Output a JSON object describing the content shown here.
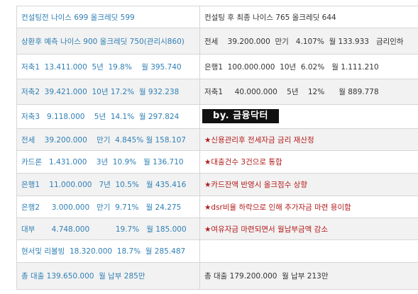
{
  "rows": [
    {
      "left": "컨설팅전 나이스 699 올크레딧 599",
      "right": "컨설팅 후 최종 나이스 765 올크레딧 644",
      "right_color": "#333333"
    },
    {
      "left": "상환후 예측 나이스 900 올크레딧 750(관리시860)",
      "right": "전세    39.200.000  만기   4.107%  월 133.933   금리인하",
      "right_color": "#333333"
    },
    {
      "left": "저축1  13.411.000  5년  19.8%    월 395.740",
      "right": "은행1  100.000.000  10년  6.02%   월 1.111.210",
      "right_color": "#333333"
    },
    {
      "left": "저축2  39.421.000  10년 17.2%  월 932.238",
      "right": "저축1     40.000.000    5년    12%      월 889.778",
      "right_color": "#333333"
    },
    {
      "left": "저축3   9.118.000    5년  14.1%  월 297.824",
      "right": "",
      "right_color": "#333333"
    },
    {
      "left": "전세    39.200.000    만기  4.845% 월 158.107",
      "right": "★신용관리후 전세자금 금리 재산정",
      "right_color": "#b31a1a"
    },
    {
      "left": "카드론   1.431.000    3년  10.9%   월 136.710",
      "right": "★대출건수 3건으로 통합",
      "right_color": "#b31a1a"
    },
    {
      "left": "은행1    11.000.000   7년  10.5%   월 435.416",
      "right": "★카드잔액 반영시 올크점수 상향",
      "right_color": "#b31a1a"
    },
    {
      "left": "은행2     3.000.000   만기  9.71%   월 24.275",
      "right": "★dsr비율 하락으로 인해 추가자금 마련 용이함",
      "right_color": "#b31a1a"
    },
    {
      "left": "대부       4.748.000           19.7%   월 185.000",
      "right": "★여유자금 마련되면서 월납부금액 감소",
      "right_color": "#b31a1a"
    },
    {
      "left": "현서및 리볼빙  18.320.000  18.7%  월 285.487",
      "right": "",
      "right_color": "#333333"
    },
    {
      "left": "총 대출 139.650.000  월 납부 285만",
      "right": "총 대출 179.200.000  월 납부 213만",
      "right_color": "#333333"
    }
  ],
  "watermark": "by. 금융닥터",
  "colors": {
    "left_text": "#2f7fb5",
    "right_text": "#333333",
    "note_text": "#b31a1a",
    "alt_row_bg": "#f2f2f2",
    "border": "#d6d6d6"
  }
}
